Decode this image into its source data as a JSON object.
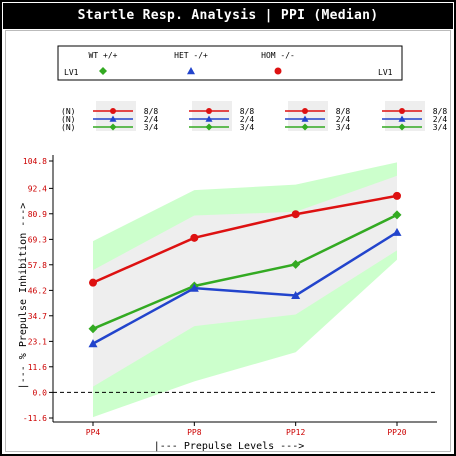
{
  "title": "Startle Resp. Analysis | PPI (Median)",
  "legend": {
    "left_tag": "LV1",
    "right_tag": "LV1",
    "entries": [
      {
        "label": "WT +/+",
        "color": "#33aa22",
        "marker": "diamond"
      },
      {
        "label": "HET -/+",
        "color": "#2244cc",
        "marker": "triangle"
      },
      {
        "label": "HOM -/-",
        "color": "#dd1111",
        "marker": "circle"
      }
    ]
  },
  "n_table": {
    "row_label": "(N)",
    "rows": [
      {
        "series": "HOM -/-",
        "color": "#dd1111",
        "marker": "circle",
        "values": [
          "8/8",
          "8/8",
          "8/8",
          "8/8"
        ]
      },
      {
        "series": "HET -/+",
        "color": "#2244cc",
        "marker": "triangle",
        "values": [
          "2/4",
          "2/4",
          "2/4",
          "2/4"
        ]
      },
      {
        "series": "WT +/+",
        "color": "#33aa22",
        "marker": "diamond",
        "values": [
          "3/4",
          "3/4",
          "3/4",
          "3/4"
        ]
      }
    ]
  },
  "chart_data": {
    "type": "line",
    "title": "Startle Resp. Analysis | PPI (Median)",
    "xlabel": "|--- Prepulse Levels --->",
    "ylabel": "|--- % Prepulse Inhibition --->",
    "categories": [
      "PP4",
      "PP8",
      "PP12",
      "PP20"
    ],
    "yticks": [
      "104.8",
      "92.4",
      "80.9",
      "69.3",
      "57.8",
      "46.2",
      "34.7",
      "23.1",
      "11.6",
      "0.0",
      "-11.6"
    ],
    "ylim": [
      -11.6,
      104.8
    ],
    "grid": false,
    "series": [
      {
        "name": "WT +/+",
        "color": "#33aa22",
        "marker": "diamond",
        "values": [
          28.8,
          48.2,
          58.0,
          80.4
        ]
      },
      {
        "name": "HET -/+",
        "color": "#2244cc",
        "marker": "triangle",
        "values": [
          22.1,
          47.2,
          43.9,
          72.5
        ]
      },
      {
        "name": "HOM -/-",
        "color": "#dd1111",
        "marker": "circle",
        "values": [
          49.7,
          70.0,
          80.7,
          89.0
        ]
      }
    ],
    "bands": [
      {
        "color": "#ccffcc",
        "upper": [
          68.5,
          91.6,
          94.1,
          104.2
        ],
        "lower": [
          -11.2,
          5.0,
          18.2,
          60.1
        ]
      },
      {
        "color": "#eeeeee",
        "upper": [
          55.4,
          80.1,
          81.8,
          98.1
        ],
        "lower": [
          2.6,
          30.0,
          35.3,
          64.3
        ]
      }
    ],
    "reference_line": 0.0
  }
}
